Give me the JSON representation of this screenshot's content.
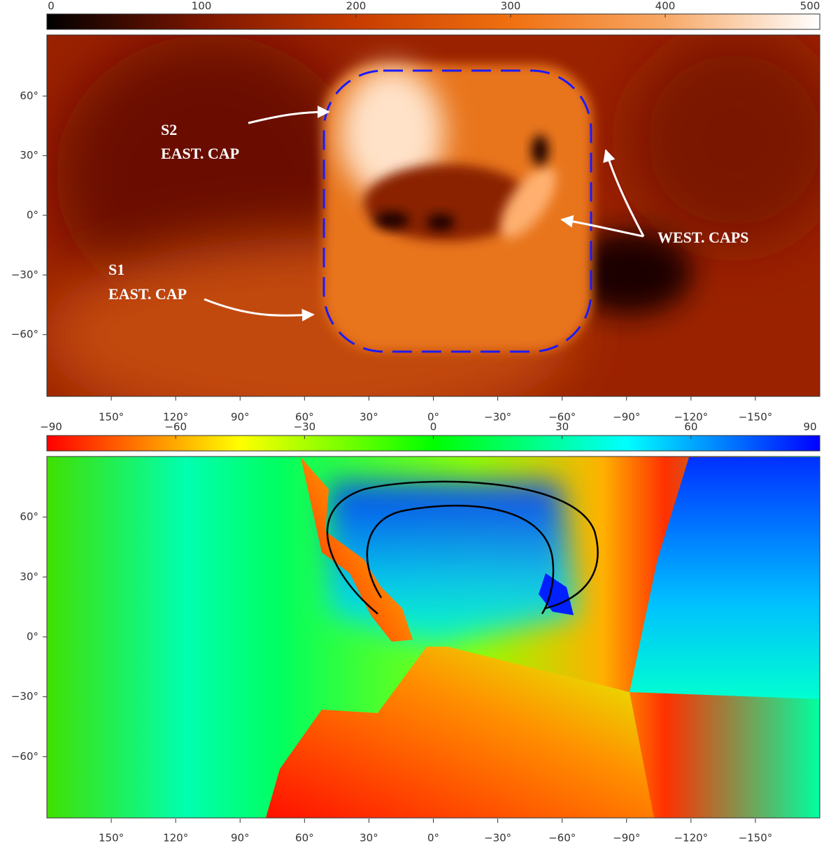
{
  "chart_data": [
    {
      "type": "heatmap",
      "colorbar": {
        "lim": [
          0,
          500
        ],
        "ticks": [
          0,
          100,
          200,
          300,
          400,
          500
        ],
        "colors": [
          "#000000",
          "#7a1500",
          "#c83c00",
          "#f07010",
          "#f7a866",
          "#ffffff"
        ]
      },
      "xlim": [
        180,
        -180
      ],
      "xticks": [
        {
          "value": 150,
          "label": "150°"
        },
        {
          "value": 120,
          "label": "120°"
        },
        {
          "value": 90,
          "label": "90°"
        },
        {
          "value": 60,
          "label": "60°"
        },
        {
          "value": 30,
          "label": "30°"
        },
        {
          "value": 0,
          "label": "0°"
        },
        {
          "value": -30,
          "label": "−30°"
        },
        {
          "value": -60,
          "label": "−60°"
        },
        {
          "value": -90,
          "label": "−90°"
        },
        {
          "value": -120,
          "label": "−120°"
        },
        {
          "value": -150,
          "label": "−150°"
        }
      ],
      "ylim": [
        -90,
        90
      ],
      "yticks": [
        {
          "value": 60,
          "label": "60°"
        },
        {
          "value": 30,
          "label": "30°"
        },
        {
          "value": 0,
          "label": "0°"
        },
        {
          "value": -30,
          "label": "−30°"
        },
        {
          "value": -60,
          "label": "−60°"
        }
      ],
      "annotations": [
        "S2",
        "EAST. CAP",
        "WEST. CAPS",
        "S1",
        "EAST. CAP"
      ]
    },
    {
      "type": "heatmap",
      "colorbar": {
        "lim": [
          -90,
          90
        ],
        "ticks": [
          {
            "value": -90,
            "label": "−90"
          },
          {
            "value": -60,
            "label": "−60"
          },
          {
            "value": -30,
            "label": "−30"
          },
          0,
          30,
          60,
          90
        ],
        "colors": [
          "#ff0000",
          "#ffff00",
          "#00ff00",
          "#00ffff",
          "#0000ff"
        ]
      },
      "xlim": [
        180,
        -180
      ],
      "xticks": [
        {
          "value": 150,
          "label": "150°"
        },
        {
          "value": 120,
          "label": "120°"
        },
        {
          "value": 90,
          "label": "90°"
        },
        {
          "value": 60,
          "label": "60°"
        },
        {
          "value": 30,
          "label": "30°"
        },
        {
          "value": 0,
          "label": "0°"
        },
        {
          "value": -30,
          "label": "−30°"
        },
        {
          "value": -60,
          "label": "−60°"
        },
        {
          "value": -90,
          "label": "−90°"
        },
        {
          "value": -120,
          "label": "−120°"
        },
        {
          "value": -150,
          "label": "−150°"
        }
      ],
      "ylim": [
        -90,
        90
      ],
      "yticks": [
        {
          "value": 60,
          "label": "60°"
        },
        {
          "value": 30,
          "label": "30°"
        },
        {
          "value": 0,
          "label": "0°"
        },
        {
          "value": -30,
          "label": "−30°"
        },
        {
          "value": -60,
          "label": "−60°"
        }
      ]
    }
  ]
}
